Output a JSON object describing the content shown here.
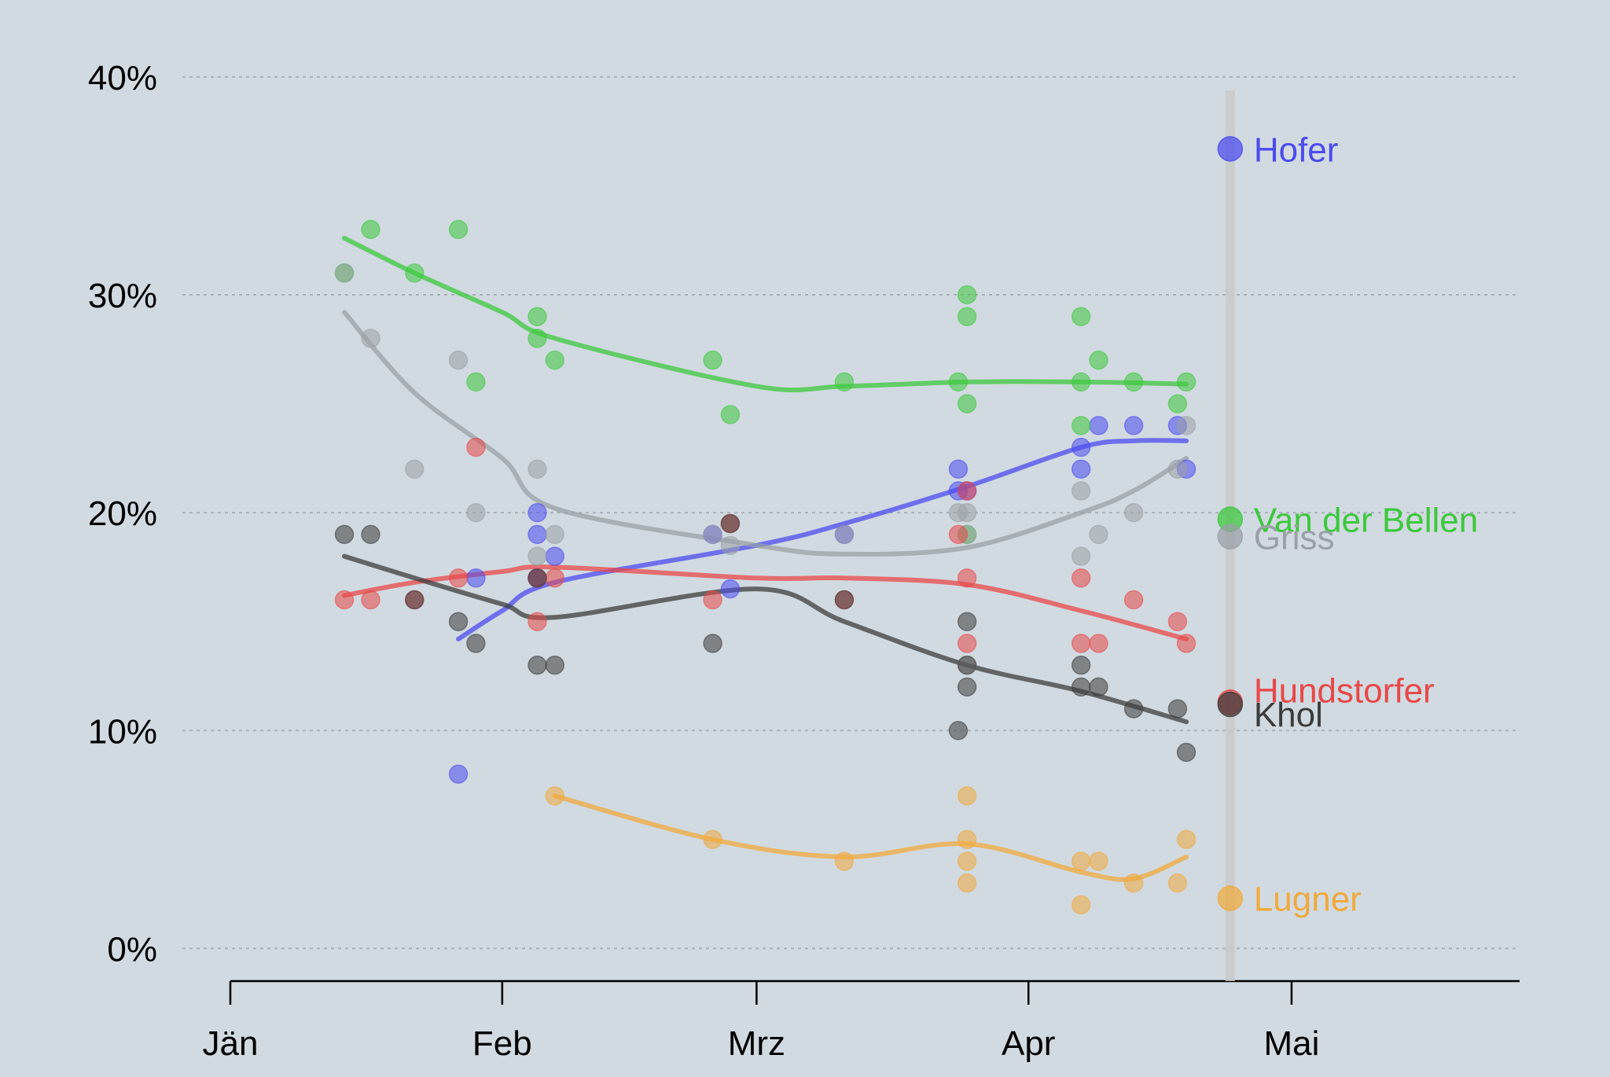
{
  "chart_data": {
    "type": "scatter",
    "title": "",
    "xlabel": "",
    "ylabel": "",
    "x_axis_type": "date",
    "xlim": [
      "2016-01-01",
      "2016-05-27"
    ],
    "ylim": [
      -1.5,
      40.5
    ],
    "x_ticks": [
      {
        "date": "2016-01-01",
        "label": "Jän"
      },
      {
        "date": "2016-02-01",
        "label": "Feb"
      },
      {
        "date": "2016-03-01",
        "label": "Mrz"
      },
      {
        "date": "2016-04-01",
        "label": "Apr"
      },
      {
        "date": "2016-05-01",
        "label": "Mai"
      }
    ],
    "y_ticks": [
      {
        "value": 0,
        "label": "0%"
      },
      {
        "value": 10,
        "label": "10%"
      },
      {
        "value": 20,
        "label": "20%"
      },
      {
        "value": 30,
        "label": "30%"
      },
      {
        "value": 40,
        "label": "40%"
      }
    ],
    "grid": "horizontal dotted",
    "election_date": "2016-04-24",
    "series": [
      {
        "name": "Hofer",
        "color": "#4b4bf0",
        "result": 36.7,
        "polls": [
          [
            "2016-01-27",
            8
          ],
          [
            "2016-01-29",
            17
          ],
          [
            "2016-02-05",
            20
          ],
          [
            "2016-02-05",
            19
          ],
          [
            "2016-02-07",
            18
          ],
          [
            "2016-02-05",
            17
          ],
          [
            "2016-02-25",
            19
          ],
          [
            "2016-02-27",
            16.5
          ],
          [
            "2016-03-11",
            19
          ],
          [
            "2016-03-24",
            22
          ],
          [
            "2016-03-24",
            21
          ],
          [
            "2016-03-25",
            21
          ],
          [
            "2016-04-07",
            23
          ],
          [
            "2016-04-07",
            22
          ],
          [
            "2016-04-09",
            24
          ],
          [
            "2016-04-13",
            24
          ],
          [
            "2016-04-18",
            24
          ],
          [
            "2016-04-19",
            22
          ]
        ],
        "trend": [
          [
            "2016-01-27",
            14.2
          ],
          [
            "2016-02-01",
            15.5
          ],
          [
            "2016-02-07",
            16.8
          ],
          [
            "2016-03-01",
            18.5
          ],
          [
            "2016-03-11",
            19.5
          ],
          [
            "2016-03-25",
            21.2
          ],
          [
            "2016-04-07",
            23
          ],
          [
            "2016-04-13",
            23.3
          ],
          [
            "2016-04-19",
            23.3
          ]
        ]
      },
      {
        "name": "Van der Bellen",
        "color": "#3cc83c",
        "result": 19.7,
        "polls": [
          [
            "2016-01-14",
            31
          ],
          [
            "2016-01-17",
            33
          ],
          [
            "2016-01-22",
            31
          ],
          [
            "2016-01-27",
            33
          ],
          [
            "2016-01-29",
            26
          ],
          [
            "2016-02-05",
            29
          ],
          [
            "2016-02-05",
            28
          ],
          [
            "2016-02-07",
            27
          ],
          [
            "2016-02-25",
            27
          ],
          [
            "2016-02-27",
            24.5
          ],
          [
            "2016-03-11",
            26
          ],
          [
            "2016-03-24",
            26
          ],
          [
            "2016-03-25",
            30
          ],
          [
            "2016-03-25",
            29
          ],
          [
            "2016-03-25",
            25
          ],
          [
            "2016-03-25",
            19
          ],
          [
            "2016-04-07",
            29
          ],
          [
            "2016-04-07",
            26
          ],
          [
            "2016-04-07",
            24
          ],
          [
            "2016-04-09",
            27
          ],
          [
            "2016-04-13",
            26
          ],
          [
            "2016-04-18",
            25
          ],
          [
            "2016-04-19",
            26
          ]
        ],
        "trend": [
          [
            "2016-01-14",
            32.6
          ],
          [
            "2016-01-22",
            31
          ],
          [
            "2016-02-01",
            29.2
          ],
          [
            "2016-02-07",
            28
          ],
          [
            "2016-03-01",
            25.8
          ],
          [
            "2016-03-11",
            25.8
          ],
          [
            "2016-03-25",
            26
          ],
          [
            "2016-04-07",
            26
          ],
          [
            "2016-04-19",
            25.9
          ]
        ]
      },
      {
        "name": "Griss",
        "color": "#9aa0a6",
        "result": 18.9,
        "polls": [
          [
            "2016-01-14",
            31
          ],
          [
            "2016-01-17",
            28
          ],
          [
            "2016-01-22",
            22
          ],
          [
            "2016-01-27",
            27
          ],
          [
            "2016-01-29",
            20
          ],
          [
            "2016-02-05",
            22
          ],
          [
            "2016-02-05",
            18
          ],
          [
            "2016-02-07",
            19
          ],
          [
            "2016-02-25",
            19
          ],
          [
            "2016-02-27",
            18.5
          ],
          [
            "2016-03-11",
            19
          ],
          [
            "2016-03-24",
            20
          ],
          [
            "2016-03-25",
            20
          ],
          [
            "2016-03-25",
            19
          ],
          [
            "2016-03-25",
            13
          ],
          [
            "2016-04-07",
            21
          ],
          [
            "2016-04-07",
            18
          ],
          [
            "2016-04-09",
            19
          ],
          [
            "2016-04-13",
            20
          ],
          [
            "2016-04-18",
            22
          ],
          [
            "2016-04-19",
            24
          ]
        ],
        "trend": [
          [
            "2016-01-14",
            29.2
          ],
          [
            "2016-01-22",
            25.5
          ],
          [
            "2016-02-01",
            22.5
          ],
          [
            "2016-02-07",
            20.2
          ],
          [
            "2016-03-01",
            18.5
          ],
          [
            "2016-03-11",
            18.1
          ],
          [
            "2016-03-25",
            18.4
          ],
          [
            "2016-04-07",
            20
          ],
          [
            "2016-04-13",
            21
          ],
          [
            "2016-04-19",
            22.5
          ]
        ]
      },
      {
        "name": "Hundstorfer",
        "color": "#e84848",
        "result": 11.3,
        "polls": [
          [
            "2016-01-14",
            16
          ],
          [
            "2016-01-17",
            16
          ],
          [
            "2016-01-22",
            16
          ],
          [
            "2016-01-27",
            17
          ],
          [
            "2016-01-29",
            23
          ],
          [
            "2016-02-05",
            17
          ],
          [
            "2016-02-05",
            15
          ],
          [
            "2016-02-07",
            17
          ],
          [
            "2016-02-25",
            16
          ],
          [
            "2016-02-27",
            19.5
          ],
          [
            "2016-03-11",
            16
          ],
          [
            "2016-03-24",
            19
          ],
          [
            "2016-03-25",
            21
          ],
          [
            "2016-03-25",
            17
          ],
          [
            "2016-03-25",
            14
          ],
          [
            "2016-04-07",
            17
          ],
          [
            "2016-04-07",
            14
          ],
          [
            "2016-04-09",
            14
          ],
          [
            "2016-04-13",
            16
          ],
          [
            "2016-04-18",
            15
          ],
          [
            "2016-04-19",
            14
          ]
        ],
        "trend": [
          [
            "2016-01-14",
            16.2
          ],
          [
            "2016-01-22",
            16.8
          ],
          [
            "2016-02-01",
            17.3
          ],
          [
            "2016-02-07",
            17.5
          ],
          [
            "2016-03-01",
            17
          ],
          [
            "2016-03-11",
            17
          ],
          [
            "2016-03-25",
            16.7
          ],
          [
            "2016-04-07",
            15.5
          ],
          [
            "2016-04-19",
            14.2
          ]
        ]
      },
      {
        "name": "Khol",
        "color": "#3c3c3c",
        "result": 11.2,
        "polls": [
          [
            "2016-01-14",
            19
          ],
          [
            "2016-01-17",
            19
          ],
          [
            "2016-01-22",
            16
          ],
          [
            "2016-01-27",
            15
          ],
          [
            "2016-01-29",
            14
          ],
          [
            "2016-02-05",
            17
          ],
          [
            "2016-02-05",
            13
          ],
          [
            "2016-02-07",
            13
          ],
          [
            "2016-02-25",
            14
          ],
          [
            "2016-02-27",
            19.5
          ],
          [
            "2016-03-11",
            16
          ],
          [
            "2016-03-24",
            10
          ],
          [
            "2016-03-25",
            15
          ],
          [
            "2016-03-25",
            13
          ],
          [
            "2016-03-25",
            12
          ],
          [
            "2016-04-07",
            13
          ],
          [
            "2016-04-07",
            12
          ],
          [
            "2016-04-09",
            12
          ],
          [
            "2016-04-13",
            11
          ],
          [
            "2016-04-18",
            11
          ],
          [
            "2016-04-19",
            9
          ]
        ],
        "trend": [
          [
            "2016-01-14",
            18
          ],
          [
            "2016-01-22",
            17
          ],
          [
            "2016-02-01",
            15.8
          ],
          [
            "2016-02-07",
            15.2
          ],
          [
            "2016-03-01",
            16.5
          ],
          [
            "2016-03-11",
            15
          ],
          [
            "2016-03-25",
            13
          ],
          [
            "2016-04-07",
            11.8
          ],
          [
            "2016-04-19",
            10.4
          ]
        ]
      },
      {
        "name": "Lugner",
        "color": "#f0aa3c",
        "result": 2.3,
        "polls": [
          [
            "2016-02-07",
            7
          ],
          [
            "2016-02-25",
            5
          ],
          [
            "2016-03-11",
            4
          ],
          [
            "2016-03-25",
            7
          ],
          [
            "2016-03-25",
            5
          ],
          [
            "2016-03-25",
            4
          ],
          [
            "2016-03-25",
            3
          ],
          [
            "2016-04-07",
            4
          ],
          [
            "2016-04-07",
            2
          ],
          [
            "2016-04-09",
            4
          ],
          [
            "2016-04-13",
            3
          ],
          [
            "2016-04-18",
            3
          ],
          [
            "2016-04-19",
            5
          ]
        ],
        "trend": [
          [
            "2016-02-07",
            7
          ],
          [
            "2016-02-25",
            5
          ],
          [
            "2016-03-11",
            4.2
          ],
          [
            "2016-03-25",
            4.8
          ],
          [
            "2016-04-07",
            3.5
          ],
          [
            "2016-04-13",
            3.2
          ],
          [
            "2016-04-19",
            4.2
          ]
        ]
      }
    ]
  }
}
